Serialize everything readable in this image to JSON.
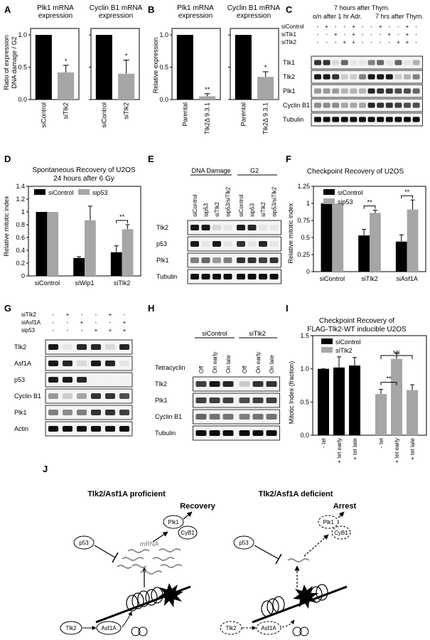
{
  "panels": {
    "A": {
      "letter": "A",
      "ylabel_1": "Ratio of expression",
      "ylabel_2": "DNA damage / G2",
      "left": {
        "title_1": "Plk1 mRNA",
        "title_2": "expression"
      },
      "right": {
        "title_1": "Cyclin B1 mRNA",
        "title_2": "expression"
      },
      "yticks": [
        "0.0",
        "0.5",
        "1.0"
      ],
      "cat1": "siControl",
      "cat2": "siTlk2",
      "star": "*"
    },
    "B": {
      "letter": "B",
      "ylabel": "Relative expression",
      "left": {
        "title_1": "Plk1 mRNA",
        "title_2": "expression",
        "star": "**"
      },
      "right": {
        "title_1": "Cyclin B1 mRNA",
        "title_2": "expression",
        "star": "*"
      },
      "yticks": [
        "0.0",
        "0.5",
        "1.0"
      ],
      "cat1": "Parental",
      "cat2": "Tlk2Δ 9.3.1"
    },
    "C": {
      "letter": "C",
      "header_1": "7 hours after Thym.",
      "header_2": "o/n after 1 hr Adr.",
      "header_3": "7 hrs after Thym.",
      "rows_label": [
        "siControl",
        "siTlk1",
        "siTlk2"
      ],
      "row_signs": [
        [
          "-",
          "+",
          "-",
          "-",
          "+",
          "-",
          "-",
          "+",
          "-",
          "-",
          "+",
          "-"
        ],
        [
          "-",
          "-",
          "+",
          "-",
          "+",
          "-",
          "-",
          "-",
          "+",
          "-",
          "+",
          "-"
        ],
        [
          "-",
          "-",
          "-",
          "+",
          "+",
          "-",
          "-",
          "-",
          "-",
          "+",
          "+",
          "-"
        ]
      ],
      "bands": [
        "Tlk1",
        "Tlk2",
        "Plk1",
        "Cyclin B1",
        "Tubulin"
      ]
    },
    "D": {
      "letter": "D",
      "title_1": "Spontaneous Recovery of U2OS",
      "title_2": "24 hours after 6 Gy",
      "ylabel": "Relative mitotic index",
      "legend": [
        "siControl",
        "sip53"
      ],
      "yticks": [
        "0",
        "0.2",
        "0.4",
        "0.6",
        "0.8",
        "1",
        "1.2",
        "1.4"
      ],
      "cats": [
        "siControl",
        "siWip1",
        "siTlk2"
      ],
      "sig": "**"
    },
    "E": {
      "letter": "E",
      "group_1": "DNA Damage",
      "group_2": "G2",
      "lanes": [
        "siControl",
        "sip53",
        "siTlk2",
        "sip53/siTlk2",
        "siControl",
        "sip53",
        "siTlk2",
        "sip53/siTlk2"
      ],
      "bands": [
        "Tlk2",
        "p53",
        "Plk1",
        "Tubulin"
      ]
    },
    "F": {
      "letter": "F",
      "title": "Checkpoint Recovery of U2OS",
      "ylabel": "Relative mitotic index",
      "legend": [
        "siControl",
        "sip53"
      ],
      "yticks": [
        "0",
        "0.25",
        "0.5",
        "0.75",
        "1",
        "1.25"
      ],
      "cats": [
        "siControl",
        "siTlk2",
        "siAsf1A"
      ],
      "sig": "**"
    },
    "G": {
      "letter": "G",
      "rows_label": [
        "siTlk2",
        "siAsf1A",
        "sip53"
      ],
      "row_signs": [
        [
          "-",
          "+",
          "-",
          "-",
          "+",
          "-"
        ],
        [
          "-",
          "-",
          "+",
          "-",
          "-",
          "+"
        ],
        [
          "-",
          "-",
          "-",
          "+",
          "+",
          "+"
        ]
      ],
      "bands": [
        "Tlk2",
        "Asf1A",
        "p53",
        "Cyclin B1",
        "Plk1",
        "Actin"
      ]
    },
    "H": {
      "letter": "H",
      "group_1": "siControl",
      "group_2": "siTlk2",
      "treat_label": "Tetracyclin",
      "lanes": [
        "Off",
        "On early",
        "On late",
        "Off",
        "On early",
        "On late"
      ],
      "bands": [
        "Tlk2",
        "Plk1",
        "Cyclin B1",
        "Tubulin"
      ]
    },
    "I": {
      "letter": "I",
      "title_1": "Checkpoint Recovery of",
      "title_2": "FLAG-Tlk2-WT inducible U2OS",
      "ylabel": "Mitotic Index (fraction)",
      "legend": [
        "siControl",
        "siTlk2"
      ],
      "yticks": [
        "0.0",
        "0.5",
        "1.0",
        "1.5"
      ],
      "cats": [
        "- tet",
        "+ tet early",
        "+ tet late",
        "- tet",
        "+ tet early",
        "+ tet late"
      ],
      "sig": "**",
      "ns": "NS"
    },
    "J": {
      "letter": "J",
      "title_left": "Tlk2/Asf1A proficient",
      "title_right": "Tlk2/Asf1A deficient",
      "recovery": "Recovery",
      "arrest": "Arrest",
      "mrna": "mRNA",
      "p53": "p53",
      "plk1": "Plk1",
      "cyb1": "CyB1",
      "tlk2": "Tlk2",
      "asf1a": "Asf1A"
    }
  },
  "chart_data": [
    {
      "panel": "A-left",
      "type": "bar",
      "title": "Plk1 mRNA expression",
      "ylabel": "Ratio of expression DNA damage / G2",
      "categories": [
        "siControl",
        "siTlk2"
      ],
      "values": [
        1.0,
        0.42
      ],
      "errors": [
        0,
        0.11
      ],
      "ylim": [
        0,
        1.1
      ]
    },
    {
      "panel": "A-right",
      "type": "bar",
      "title": "Cyclin B1 mRNA expression",
      "categories": [
        "siControl",
        "siTlk2"
      ],
      "values": [
        1.0,
        0.4
      ],
      "errors": [
        0,
        0.21
      ],
      "ylim": [
        0,
        1.1
      ]
    },
    {
      "panel": "B-left",
      "type": "bar",
      "title": "Plk1 mRNA expression",
      "ylabel": "Relative expression",
      "categories": [
        "Parental",
        "Tlk2Δ 9.3.1"
      ],
      "values": [
        1.0,
        0.05
      ],
      "errors": [
        0,
        0.04
      ],
      "ylim": [
        0,
        1.1
      ]
    },
    {
      "panel": "B-right",
      "type": "bar",
      "title": "Cyclin B1 mRNA expression",
      "categories": [
        "Parental",
        "Tlk2Δ 9.3.1"
      ],
      "values": [
        1.0,
        0.35
      ],
      "errors": [
        0,
        0.08
      ],
      "ylim": [
        0,
        1.1
      ]
    },
    {
      "panel": "D",
      "type": "bar",
      "title": "Spontaneous Recovery of U2OS 24 hours after 6 Gy",
      "ylabel": "Relative mitotic index",
      "categories": [
        "siControl",
        "siWip1",
        "siTlk2"
      ],
      "series": [
        {
          "name": "siControl",
          "values": [
            1.0,
            0.28,
            0.37
          ],
          "errors": [
            0,
            0.02,
            0.1
          ]
        },
        {
          "name": "sip53",
          "values": [
            1.0,
            0.87,
            0.73
          ],
          "errors": [
            0,
            0.22,
            0.07
          ]
        }
      ],
      "ylim": [
        0,
        1.4
      ]
    },
    {
      "panel": "F",
      "type": "bar",
      "title": "Checkpoint Recovery of U2OS",
      "ylabel": "Relative mitotic index",
      "categories": [
        "siControl",
        "siTlk2",
        "siAsf1A"
      ],
      "series": [
        {
          "name": "siControl",
          "values": [
            1.0,
            0.53,
            0.44
          ],
          "errors": [
            0,
            0.09,
            0.1
          ]
        },
        {
          "name": "sip53",
          "values": [
            1.0,
            0.86,
            0.91
          ],
          "errors": [
            0,
            0.04,
            0.14
          ]
        }
      ],
      "ylim": [
        0,
        1.25
      ]
    },
    {
      "panel": "I",
      "type": "bar",
      "title": "Checkpoint Recovery of FLAG-Tlk2-WT inducible U2OS",
      "ylabel": "Mitotic Index (fraction)",
      "categories": [
        "- tet",
        "+ tet early",
        "+ tet late",
        "- tet",
        "+ tet early",
        "+ tet late"
      ],
      "series": [
        {
          "name": "siControl",
          "values": [
            1.0,
            1.02,
            1.05,
            null,
            null,
            null
          ],
          "errors": [
            0,
            0.16,
            0.12,
            null,
            null,
            null
          ]
        },
        {
          "name": "siTlk2",
          "values": [
            null,
            null,
            null,
            0.62,
            1.15,
            0.68
          ],
          "errors": [
            null,
            null,
            null,
            0.07,
            0.09,
            0.08
          ]
        }
      ],
      "ylim": [
        0,
        1.5
      ]
    }
  ]
}
